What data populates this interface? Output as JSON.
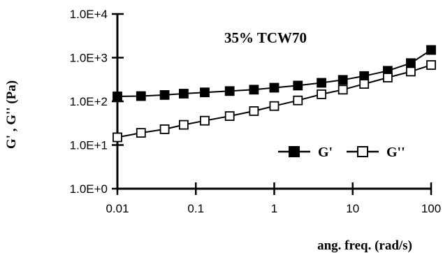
{
  "chart_data": {
    "type": "line",
    "title": "35% TCW70",
    "xlabel": "ang. freq. (rad/s)",
    "ylabel": "G' , G'' (Pa)",
    "x_scale": "log",
    "y_scale": "log",
    "xlim": [
      0.01,
      100
    ],
    "ylim": [
      1,
      10000
    ],
    "x_ticks": [
      "0.01",
      "0.1",
      "1",
      "10",
      "100"
    ],
    "y_ticks": [
      "1.0E+0",
      "1.0E+1",
      "1.0E+2",
      "1.0E+3",
      "1.0E+4"
    ],
    "grid": false,
    "legend_position": "bottom-right",
    "x": [
      0.01,
      0.02,
      0.04,
      0.07,
      0.13,
      0.27,
      0.55,
      1,
      2,
      4,
      7.5,
      14,
      28,
      55,
      100
    ],
    "series": [
      {
        "name": "G'",
        "marker": "filled-square",
        "values": [
          130,
          132,
          140,
          150,
          160,
          172,
          185,
          205,
          230,
          265,
          310,
          380,
          500,
          750,
          1500
        ]
      },
      {
        "name": "G''",
        "marker": "open-square",
        "values": [
          15,
          19,
          23,
          29,
          36,
          46,
          60,
          78,
          105,
          145,
          185,
          250,
          350,
          480,
          680
        ]
      }
    ]
  }
}
